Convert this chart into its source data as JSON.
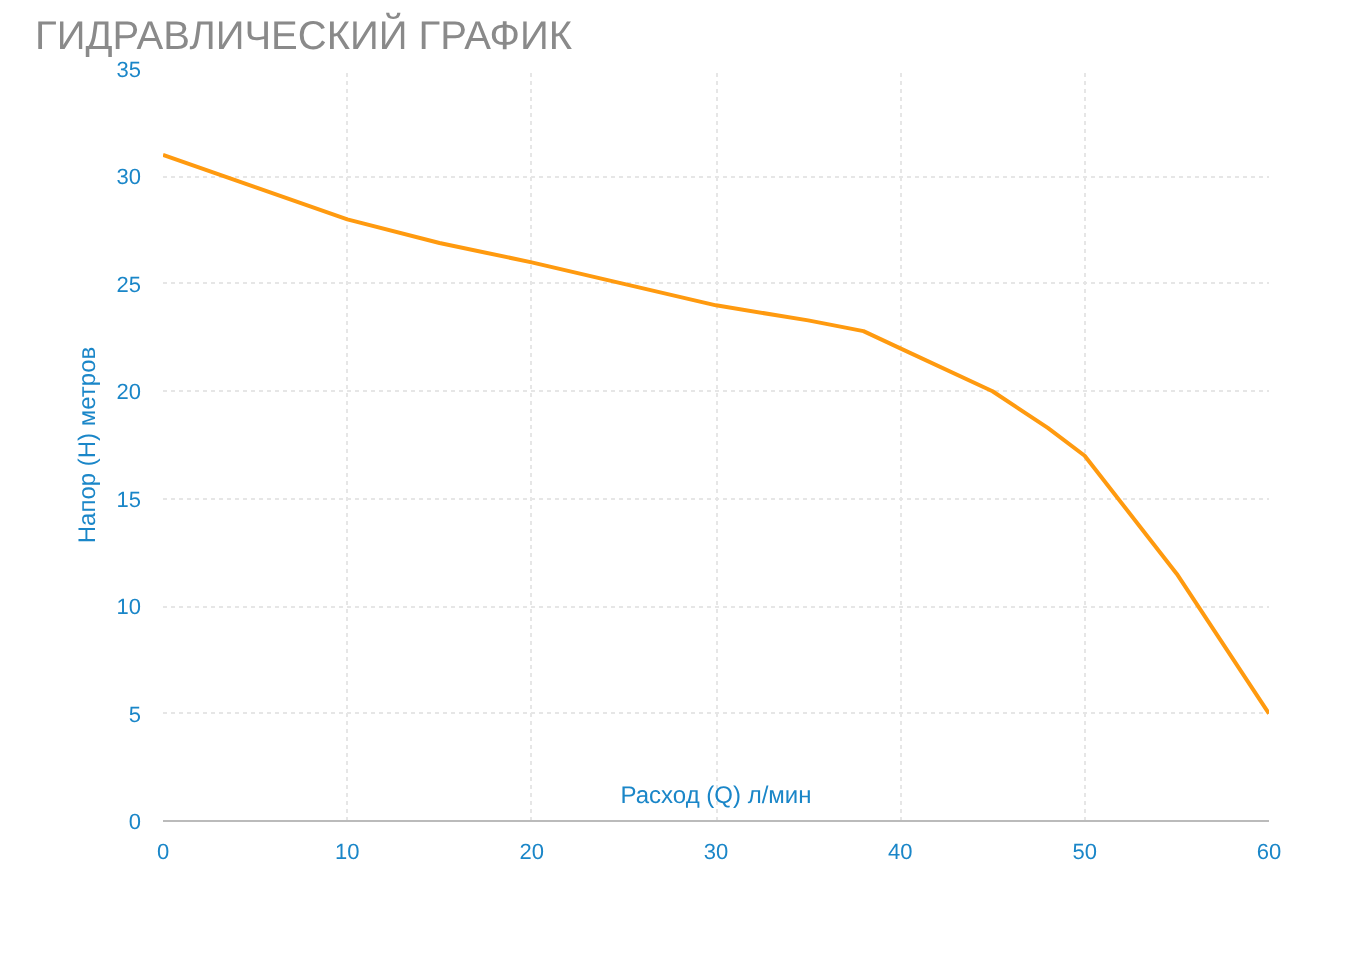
{
  "chart_data": {
    "type": "line",
    "title": "ГИДРАВЛИЧЕСКИЙ ГРАФИК",
    "xlabel": "Расход (Q) л/мин",
    "ylabel": "Напор (H) метров",
    "x": [
      0,
      5,
      10,
      15,
      20,
      25,
      30,
      35,
      38,
      40,
      45,
      48,
      50,
      55,
      60
    ],
    "series": [
      {
        "color": "#ff9a0f",
        "values": [
          31,
          29.5,
          28,
          26.9,
          26,
          25,
          24,
          23.3,
          22.8,
          22,
          20,
          18.3,
          17,
          11.5,
          5
        ]
      }
    ],
    "xlim": [
      0,
      60
    ],
    "ylim": [
      0,
      35
    ],
    "xticks": [
      0,
      10,
      20,
      30,
      40,
      50,
      60
    ],
    "yticks": [
      0,
      5,
      10,
      15,
      20,
      25,
      30,
      35
    ],
    "grid": true,
    "line_style": "solid",
    "marker": "none"
  }
}
